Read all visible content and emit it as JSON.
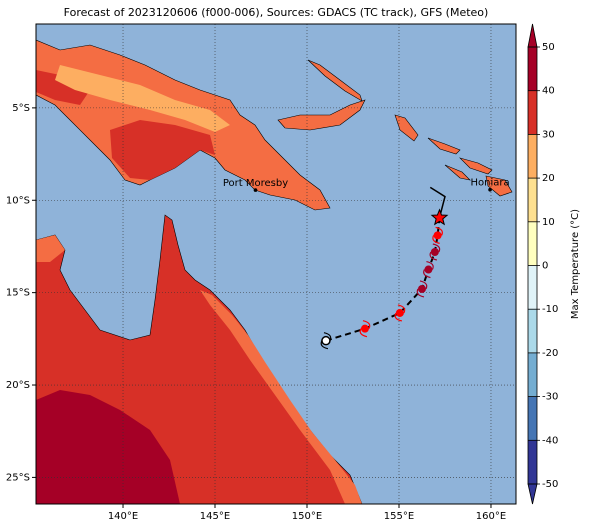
{
  "map": {
    "title": "Forecast of 2023120606 (f000-006), Sources: GDACS (TC track), GFS (Meteo)",
    "xlim": [
      135.27,
      161.36
    ],
    "ylim": [
      -26.44,
      -0.46
    ],
    "xticks": [
      {
        "value": 140,
        "label": "140°E"
      },
      {
        "value": 145,
        "label": "145°E"
      },
      {
        "value": 150,
        "label": "150°E"
      },
      {
        "value": 155,
        "label": "155°E"
      },
      {
        "value": 160,
        "label": "160°E"
      }
    ],
    "yticks": [
      {
        "value": -5,
        "label": "5°S"
      },
      {
        "value": -10,
        "label": "10°S"
      },
      {
        "value": -15,
        "label": "15°S"
      },
      {
        "value": -20,
        "label": "20°S"
      },
      {
        "value": -25,
        "label": "25°S"
      }
    ],
    "grid": true,
    "places": [
      {
        "name": "Port Moresby",
        "lon": 147.2,
        "lat": -9.45
      },
      {
        "name": "Honiara",
        "lon": 159.95,
        "lat": -9.43
      }
    ],
    "track": [
      {
        "lon": 151.03,
        "lat": -17.6,
        "color": "#ffffff"
      },
      {
        "lon": 153.15,
        "lat": -16.95,
        "color": "#ff0000"
      },
      {
        "lon": 155.05,
        "lat": -16.1,
        "color": "#ff0000"
      },
      {
        "lon": 156.25,
        "lat": -14.8,
        "color": "#a50026"
      },
      {
        "lon": 156.6,
        "lat": -13.75,
        "color": "#a50026"
      },
      {
        "lon": 156.95,
        "lat": -12.8,
        "color": "#a50026"
      },
      {
        "lon": 157.1,
        "lat": -11.9,
        "color": "#ff0000"
      },
      {
        "lon": 157.2,
        "lat": -10.95,
        "color": "#ff0000"
      },
      {
        "lon": 157.5,
        "lat": -9.8,
        "color": "#000000"
      },
      {
        "lon": 156.7,
        "lat": -9.3,
        "color": "#000000"
      }
    ],
    "colorbar": {
      "label": "Max Temperature (°C)",
      "ticks": [
        -50,
        -40,
        -30,
        -20,
        -10,
        0,
        10,
        20,
        30,
        40,
        50
      ],
      "colors": [
        "#313695",
        "#4575b4",
        "#74add1",
        "#abd9e9",
        "#e0f3f8",
        "#ffffbf",
        "#fee090",
        "#fdae61",
        "#d73027",
        "#a50026"
      ]
    }
  }
}
